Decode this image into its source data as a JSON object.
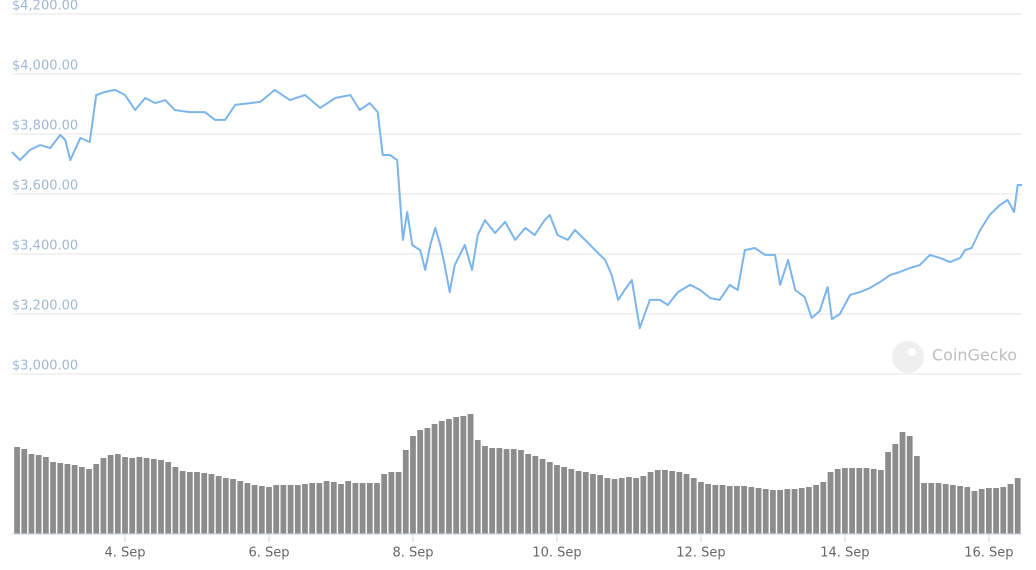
{
  "chart_data": [
    {
      "type": "line",
      "x": [
        2.43,
        2.54,
        2.68,
        2.82,
        2.96,
        3.1,
        3.17,
        3.24,
        3.38,
        3.51,
        3.6,
        3.72,
        3.86,
        4.0,
        4.14,
        4.28,
        4.42,
        4.56,
        4.69,
        4.9,
        5.11,
        5.25,
        5.39,
        5.53,
        5.74,
        5.88,
        6.08,
        6.29,
        6.5,
        6.71,
        6.92,
        7.13,
        7.26,
        7.4,
        7.51,
        7.58,
        7.68,
        7.78,
        7.86,
        7.92,
        7.99,
        8.1,
        8.17,
        8.24,
        8.31,
        8.38,
        8.44,
        8.51,
        8.58,
        8.72,
        8.82,
        8.9,
        9.0,
        9.14,
        9.28,
        9.42,
        9.56,
        9.69,
        9.83,
        9.9,
        10.01,
        10.15,
        10.25,
        10.39,
        10.53,
        10.67,
        10.76,
        10.85,
        10.94,
        11.04,
        11.15,
        11.29,
        11.43,
        11.54,
        11.68,
        11.85,
        11.99,
        12.13,
        12.26,
        12.4,
        12.51,
        12.61,
        12.75,
        12.89,
        13.03,
        13.1,
        13.21,
        13.31,
        13.44,
        13.54,
        13.65,
        13.76,
        13.82,
        13.93,
        14.07,
        14.21,
        14.35,
        14.49,
        14.63,
        14.76,
        14.9,
        15.04,
        15.18,
        15.32,
        15.46,
        15.6,
        15.67,
        15.76,
        15.88,
        16.01,
        16.15,
        16.26,
        16.35,
        16.4,
        16.46
      ],
      "values": [
        3740,
        3713,
        3747,
        3763,
        3753,
        3797,
        3780,
        3713,
        3787,
        3773,
        3930,
        3940,
        3947,
        3930,
        3880,
        3920,
        3903,
        3913,
        3880,
        3873,
        3873,
        3847,
        3847,
        3897,
        3903,
        3907,
        3947,
        3913,
        3930,
        3887,
        3920,
        3930,
        3880,
        3903,
        3873,
        3730,
        3730,
        3713,
        3447,
        3540,
        3430,
        3413,
        3347,
        3430,
        3487,
        3430,
        3363,
        3273,
        3363,
        3430,
        3347,
        3463,
        3513,
        3470,
        3507,
        3447,
        3487,
        3463,
        3513,
        3530,
        3463,
        3447,
        3480,
        3447,
        3413,
        3380,
        3330,
        3247,
        3280,
        3313,
        3153,
        3247,
        3247,
        3230,
        3273,
        3297,
        3280,
        3253,
        3247,
        3297,
        3280,
        3413,
        3420,
        3397,
        3397,
        3297,
        3380,
        3280,
        3257,
        3187,
        3210,
        3290,
        3183,
        3200,
        3263,
        3273,
        3287,
        3307,
        3330,
        3340,
        3353,
        3363,
        3397,
        3387,
        3373,
        3387,
        3413,
        3420,
        3480,
        3530,
        3563,
        3580,
        3540,
        3630,
        3630
      ],
      "color": "#7cb5ec",
      "xlim": [
        2.43,
        16.46
      ],
      "ylim": [
        3000,
        4200
      ],
      "yticks": [
        {
          "value": 3000,
          "label": "$3,000.00"
        },
        {
          "value": 3200,
          "label": "$3,200.00"
        },
        {
          "value": 3400,
          "label": "$3,400.00"
        },
        {
          "value": 3600,
          "label": "$3,600.00"
        },
        {
          "value": 3800,
          "label": "$3,800.00"
        },
        {
          "value": 4000,
          "label": "$4,000.00"
        },
        {
          "value": 4200,
          "label": "$4,200.00"
        }
      ],
      "grid": true,
      "watermark": "CoinGecko"
    },
    {
      "type": "bar",
      "x": [
        2.5,
        2.6,
        2.7,
        2.8,
        2.9,
        3.0,
        3.1,
        3.2,
        3.3,
        3.4,
        3.5,
        3.6,
        3.7,
        3.8,
        3.9,
        4.0,
        4.1,
        4.2,
        4.3,
        4.4,
        4.5,
        4.6,
        4.7,
        4.8,
        4.9,
        5.0,
        5.1,
        5.2,
        5.3,
        5.4,
        5.5,
        5.6,
        5.7,
        5.8,
        5.9,
        6.0,
        6.1,
        6.2,
        6.3,
        6.4,
        6.5,
        6.6,
        6.7,
        6.8,
        6.9,
        7.0,
        7.1,
        7.2,
        7.3,
        7.4,
        7.5,
        7.6,
        7.7,
        7.8,
        7.9,
        8.0,
        8.1,
        8.2,
        8.3,
        8.4,
        8.5,
        8.6,
        8.7,
        8.8,
        8.9,
        9.0,
        9.1,
        9.2,
        9.3,
        9.4,
        9.5,
        9.6,
        9.7,
        9.8,
        9.9,
        10.0,
        10.1,
        10.2,
        10.3,
        10.4,
        10.5,
        10.6,
        10.7,
        10.8,
        10.9,
        11.0,
        11.1,
        11.2,
        11.3,
        11.4,
        11.5,
        11.6,
        11.7,
        11.8,
        11.9,
        12.0,
        12.1,
        12.2,
        12.3,
        12.4,
        12.5,
        12.6,
        12.7,
        12.8,
        12.9,
        13.0,
        13.1,
        13.2,
        13.3,
        13.4,
        13.5,
        13.6,
        13.7,
        13.8,
        13.9,
        14.0,
        14.1,
        14.2,
        14.3,
        14.4,
        14.5,
        14.6,
        14.7,
        14.8,
        14.9,
        15.0,
        15.1,
        15.2,
        15.3,
        15.4,
        15.5,
        15.6,
        15.7,
        15.8,
        15.9,
        16.0,
        16.1,
        16.2,
        16.3,
        16.4
      ],
      "values": [
        87,
        85,
        80,
        79,
        77,
        72,
        71,
        70,
        69,
        67,
        65,
        70,
        76,
        79,
        80,
        77,
        76,
        77,
        76,
        75,
        74,
        72,
        67,
        63,
        62,
        62,
        61,
        60,
        58,
        56,
        55,
        53,
        51,
        49,
        48,
        47,
        49,
        49,
        49,
        49,
        50,
        51,
        51,
        53,
        52,
        50,
        53,
        51,
        51,
        51,
        51,
        60,
        62,
        62,
        84,
        98,
        104,
        106,
        110,
        113,
        115,
        117,
        118,
        120,
        94,
        88,
        86,
        86,
        85,
        85,
        84,
        80,
        78,
        75,
        72,
        69,
        67,
        65,
        63,
        62,
        60,
        59,
        56,
        55,
        56,
        57,
        56,
        58,
        62,
        64,
        64,
        63,
        62,
        60,
        56,
        52,
        50,
        49,
        49,
        48,
        48,
        48,
        47,
        46,
        45,
        44,
        44,
        45,
        45,
        46,
        47,
        49,
        52,
        62,
        65,
        66,
        66,
        66,
        66,
        65,
        64,
        82,
        90,
        102,
        98,
        78,
        51,
        51,
        51,
        50,
        49,
        48,
        47,
        43,
        45,
        46,
        46,
        47,
        50,
        56
      ],
      "color": "#8c8c8c",
      "xlim": [
        2.43,
        16.46
      ],
      "ylim": [
        0,
        150
      ],
      "xticks": [
        {
          "value": 4,
          "label": "4. Sep"
        },
        {
          "value": 6,
          "label": "6. Sep"
        },
        {
          "value": 8,
          "label": "8. Sep"
        },
        {
          "value": 10,
          "label": "10. Sep"
        },
        {
          "value": 12,
          "label": "12. Sep"
        },
        {
          "value": 14,
          "label": "14. Sep"
        },
        {
          "value": 16,
          "label": "16. Sep"
        }
      ]
    }
  ]
}
